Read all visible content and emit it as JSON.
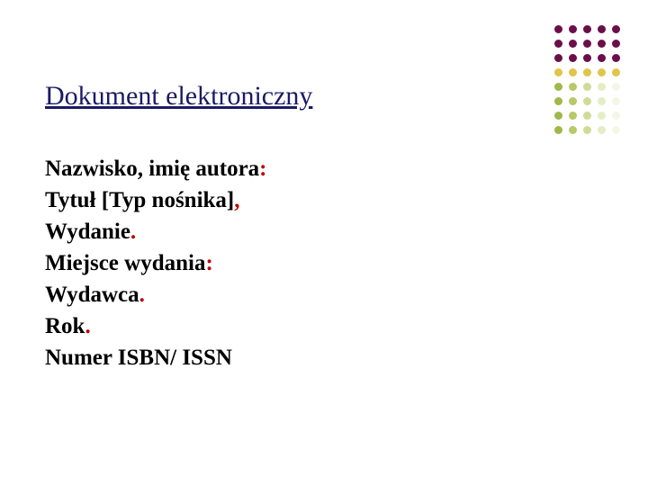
{
  "title": "Dokument elektroniczny",
  "lines": {
    "l1a": "Nazwisko, imię autora",
    "l1b": ":",
    "l2a": "Tytuł [Typ nośnika]",
    "l2b": ",",
    "l3a": "Wydanie",
    "l3b": ".",
    "l4a": "Miejsce wydania",
    "l4b": ":",
    "l5a": "Wydawca",
    "l5b": ".",
    "l6a": "Rok",
    "l6b": ".",
    "l7": "Numer ISBN/ ISSN"
  },
  "dots": {
    "colors": [
      "#6a0f49",
      "#6a0f49",
      "#6a0f49",
      "#6a0f49",
      "#6a0f49",
      "#6a0f49",
      "#6a0f49",
      "#6a0f49",
      "#6a0f49",
      "#6a0f49",
      "#6a0f49",
      "#6a0f49",
      "#6a0f49",
      "#6a0f49",
      "#6a0f49",
      "#e0c54a",
      "#e0c54a",
      "#e0c54a",
      "#e0c54a",
      "#e0c54a",
      "#9fb84a",
      "#b7c96a",
      "#cedc96",
      "#e4edc4",
      "#f3f7e5",
      "#9fb84a",
      "#b7c96a",
      "#cedc96",
      "#e4edc4",
      "#f3f7e5",
      "#9fb84a",
      "#b7c96a",
      "#cedc96",
      "#e4edc4",
      "#f3f7e5",
      "#9fb84a",
      "#b7c96a",
      "#cedc96",
      "#e4edc4",
      "#f3f7e5"
    ]
  },
  "style": {
    "title_color": "#1a1a66",
    "accent_red": "#c00000",
    "font_family": "Times New Roman",
    "title_fontsize": 30,
    "body_fontsize": 25,
    "bg": "#ffffff"
  }
}
